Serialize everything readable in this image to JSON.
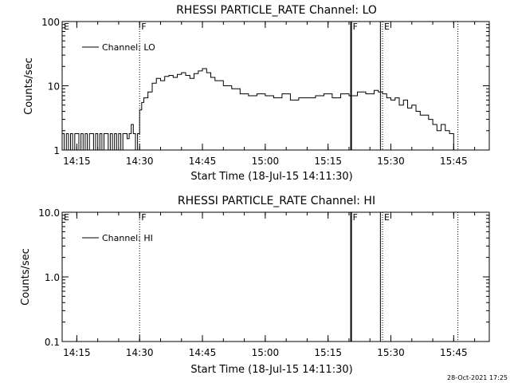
{
  "chart_data": [
    {
      "type": "line",
      "title": "RHESSI PARTICLE_RATE Channel: LO",
      "xlabel": "Start Time (18-Jul-15 14:11:30)",
      "ylabel": "Counts/sec",
      "yscale": "log",
      "ylim": [
        1,
        100
      ],
      "y_ticks": [
        "1",
        "10",
        "100"
      ],
      "xlim": [
        "14:11:30",
        "15:53:30"
      ],
      "x_ticks": [
        "14:15",
        "14:30",
        "14:45",
        "15:00",
        "15:15",
        "15:30",
        "15:45"
      ],
      "legend": "top-left",
      "grid": false,
      "series": [
        {
          "name": "Channel: LO",
          "x": [
            "14:11:30",
            "14:12:00",
            "14:12:30",
            "14:13:00",
            "14:13:30",
            "14:14:00",
            "14:14:30",
            "14:15:00",
            "14:15:30",
            "14:16:00",
            "14:16:30",
            "14:17:00",
            "14:17:30",
            "14:18:00",
            "14:18:30",
            "14:19:00",
            "14:19:30",
            "14:20:00",
            "14:20:30",
            "14:21:00",
            "14:21:30",
            "14:22:00",
            "14:22:30",
            "14:23:00",
            "14:23:30",
            "14:24:00",
            "14:24:30",
            "14:25:00",
            "14:25:30",
            "14:26:00",
            "14:26:30",
            "14:27:00",
            "14:27:30",
            "14:28:00",
            "14:28:30",
            "14:29:00",
            "14:29:30",
            "14:30:00",
            "14:30:30",
            "14:31:00",
            "14:32:00",
            "14:33:00",
            "14:34:00",
            "14:35:00",
            "14:36:00",
            "14:37:00",
            "14:38:00",
            "14:39:00",
            "14:40:00",
            "14:41:00",
            "14:42:00",
            "14:43:00",
            "14:44:00",
            "14:45:00",
            "14:46:00",
            "14:47:00",
            "14:48:00",
            "14:50:00",
            "14:52:00",
            "14:54:00",
            "14:56:00",
            "14:58:00",
            "15:00:00",
            "15:02:00",
            "15:04:00",
            "15:06:00",
            "15:08:00",
            "15:10:00",
            "15:12:00",
            "15:14:00",
            "15:16:00",
            "15:18:00",
            "15:20:00",
            "15:22:00",
            "15:24:00",
            "15:26:00",
            "15:27:00",
            "15:28:00",
            "15:29:00",
            "15:30:00",
            "15:31:00",
            "15:32:00",
            "15:33:00",
            "15:34:00",
            "15:35:00",
            "15:36:00",
            "15:37:00",
            "15:38:00",
            "15:39:00",
            "15:40:00",
            "15:41:00",
            "15:42:00",
            "15:43:00",
            "15:44:00",
            "15:45:00"
          ],
          "y": [
            1.8,
            1.0,
            1.8,
            1.0,
            1.8,
            1.0,
            1.8,
            1.8,
            1.0,
            1.8,
            1.0,
            1.8,
            1.0,
            1.8,
            1.8,
            1.0,
            1.8,
            1.0,
            1.8,
            1.0,
            1.8,
            1.8,
            1.0,
            1.8,
            1.0,
            1.8,
            1.0,
            1.8,
            1.0,
            1.8,
            1.8,
            1.5,
            1.8,
            2.5,
            1.8,
            1.0,
            1.8,
            4.2,
            5.5,
            6.5,
            8.0,
            11.0,
            13.0,
            12.0,
            14.0,
            14.5,
            13.5,
            15.0,
            16.0,
            14.5,
            13.0,
            15.5,
            17.0,
            18.5,
            16.0,
            13.5,
            12.0,
            10.0,
            9.0,
            7.5,
            7.0,
            7.5,
            7.0,
            6.5,
            7.5,
            6.0,
            6.5,
            6.5,
            7.0,
            7.5,
            6.5,
            7.5,
            7.0,
            8.0,
            7.5,
            8.5,
            8.0,
            7.5,
            6.5,
            6.0,
            6.5,
            5.0,
            6.0,
            4.5,
            5.0,
            4.0,
            3.5,
            3.5,
            3.0,
            2.5,
            2.0,
            2.5,
            2.0,
            1.8,
            1.0
          ]
        }
      ],
      "markers": [
        {
          "label": "E",
          "time": "14:11:30",
          "style": "dotted"
        },
        {
          "label": "F",
          "time": "14:30:00",
          "style": "dotted"
        },
        {
          "label": "F",
          "time": "15:20:30",
          "style": "thick"
        },
        {
          "label": "E",
          "time": "15:28:00",
          "style": "dotted"
        },
        {
          "label": "",
          "time": "15:27:30",
          "style": "solid"
        },
        {
          "label": "",
          "time": "15:46:00",
          "style": "dotted"
        }
      ]
    },
    {
      "type": "line",
      "title": "RHESSI PARTICLE_RATE Channel: HI",
      "xlabel": "Start Time (18-Jul-15 14:11:30)",
      "ylabel": "Counts/sec",
      "yscale": "log",
      "ylim": [
        0.1,
        10
      ],
      "y_ticks": [
        "0.1",
        "1.0",
        "10.0"
      ],
      "xlim": [
        "14:11:30",
        "15:53:30"
      ],
      "x_ticks": [
        "14:15",
        "14:30",
        "14:45",
        "15:00",
        "15:15",
        "15:30",
        "15:45"
      ],
      "legend": "top-left",
      "grid": false,
      "series": [
        {
          "name": "Channel: HI",
          "x": [],
          "y": []
        }
      ],
      "markers": [
        {
          "label": "E",
          "time": "14:11:30",
          "style": "dotted"
        },
        {
          "label": "F",
          "time": "14:30:00",
          "style": "dotted"
        },
        {
          "label": "F",
          "time": "15:20:30",
          "style": "thick"
        },
        {
          "label": "E",
          "time": "15:28:00",
          "style": "dotted"
        },
        {
          "label": "",
          "time": "15:27:30",
          "style": "solid"
        },
        {
          "label": "",
          "time": "15:46:00",
          "style": "dotted"
        }
      ]
    }
  ],
  "footer": {
    "timestamp": "28-Oct-2021 17:25"
  }
}
